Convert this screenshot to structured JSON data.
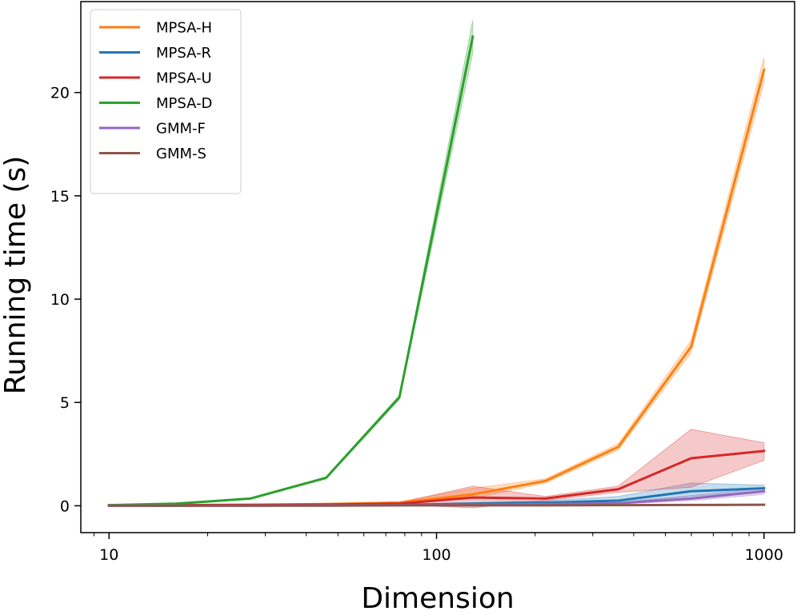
{
  "chart_data": {
    "type": "line",
    "xscale": "log",
    "xlabel": "Dimension",
    "ylabel": "Running time (s)",
    "xlim": [
      8.2,
      1240
    ],
    "ylim": [
      -1.3,
      24.4
    ],
    "xticks": [
      {
        "value": 10,
        "label": "10"
      },
      {
        "value": 100,
        "label": "100"
      },
      {
        "value": 1000,
        "label": "1000"
      }
    ],
    "yticks": [
      {
        "value": 0,
        "label": "0"
      },
      {
        "value": 5,
        "label": "5"
      },
      {
        "value": 10,
        "label": "10"
      },
      {
        "value": 15,
        "label": "15"
      },
      {
        "value": 20,
        "label": "20"
      }
    ],
    "legend_position": "top-left",
    "series": [
      {
        "name": "MPSA-H",
        "color": "#ff7f0e",
        "x": [
          10,
          16,
          27,
          46,
          77,
          129,
          215,
          359,
          599,
          1000
        ],
        "y": [
          0.02,
          0.03,
          0.05,
          0.08,
          0.15,
          0.55,
          1.2,
          2.85,
          7.7,
          21.1
        ],
        "lower": [
          0.01,
          0.02,
          0.04,
          0.07,
          0.12,
          0.35,
          1.1,
          2.7,
          7.4,
          20.5
        ],
        "upper": [
          0.03,
          0.04,
          0.06,
          0.1,
          0.2,
          0.85,
          1.3,
          3.0,
          8.0,
          21.7
        ]
      },
      {
        "name": "MPSA-R",
        "color": "#1f77b4",
        "x": [
          10,
          16,
          27,
          46,
          77,
          129,
          215,
          359,
          599,
          1000
        ],
        "y": [
          0.01,
          0.01,
          0.02,
          0.03,
          0.05,
          0.1,
          0.15,
          0.25,
          0.7,
          0.85
        ],
        "lower": [
          0.0,
          0.0,
          0.01,
          0.02,
          0.03,
          0.05,
          0.1,
          0.15,
          0.45,
          0.7
        ],
        "upper": [
          0.02,
          0.02,
          0.03,
          0.04,
          0.07,
          0.15,
          0.25,
          0.45,
          1.1,
          1.0
        ]
      },
      {
        "name": "MPSA-U",
        "color": "#d62728",
        "x": [
          10,
          16,
          27,
          46,
          77,
          129,
          215,
          359,
          599,
          1000
        ],
        "y": [
          0.02,
          0.03,
          0.04,
          0.06,
          0.1,
          0.4,
          0.35,
          0.8,
          2.3,
          2.65
        ],
        "lower": [
          0.01,
          0.02,
          0.03,
          0.04,
          0.05,
          -0.1,
          0.25,
          0.65,
          0.9,
          2.2
        ],
        "upper": [
          0.03,
          0.04,
          0.05,
          0.08,
          0.15,
          0.95,
          0.45,
          0.95,
          3.7,
          3.05
        ]
      },
      {
        "name": "MPSA-D",
        "color": "#2ca02c",
        "x": [
          10,
          16,
          27,
          46,
          77,
          129
        ],
        "y": [
          0.03,
          0.1,
          0.35,
          1.35,
          5.25,
          22.7
        ],
        "lower": [
          0.02,
          0.08,
          0.32,
          1.3,
          5.15,
          21.9
        ],
        "upper": [
          0.04,
          0.12,
          0.38,
          1.4,
          5.35,
          23.5
        ]
      },
      {
        "name": "GMM-F",
        "color": "#9467bd",
        "x": [
          10,
          16,
          27,
          46,
          77,
          129,
          215,
          359,
          599,
          1000
        ],
        "y": [
          0.01,
          0.01,
          0.01,
          0.02,
          0.03,
          0.05,
          0.08,
          0.12,
          0.35,
          0.7
        ],
        "lower": [
          0.0,
          0.0,
          0.0,
          0.01,
          0.02,
          0.03,
          0.05,
          0.08,
          0.25,
          0.55
        ],
        "upper": [
          0.02,
          0.02,
          0.02,
          0.03,
          0.04,
          0.07,
          0.11,
          0.16,
          0.5,
          0.85
        ]
      },
      {
        "name": "GMM-S",
        "color": "#8c564b",
        "x": [
          10,
          16,
          27,
          46,
          77,
          129,
          215,
          359,
          599,
          1000
        ],
        "y": [
          0.01,
          0.01,
          0.01,
          0.01,
          0.02,
          0.02,
          0.02,
          0.03,
          0.04,
          0.05
        ],
        "lower": [
          0.0,
          0.0,
          0.0,
          0.0,
          0.01,
          0.01,
          0.01,
          0.02,
          0.03,
          0.04
        ],
        "upper": [
          0.02,
          0.02,
          0.02,
          0.02,
          0.03,
          0.03,
          0.03,
          0.04,
          0.05,
          0.06
        ]
      }
    ]
  }
}
